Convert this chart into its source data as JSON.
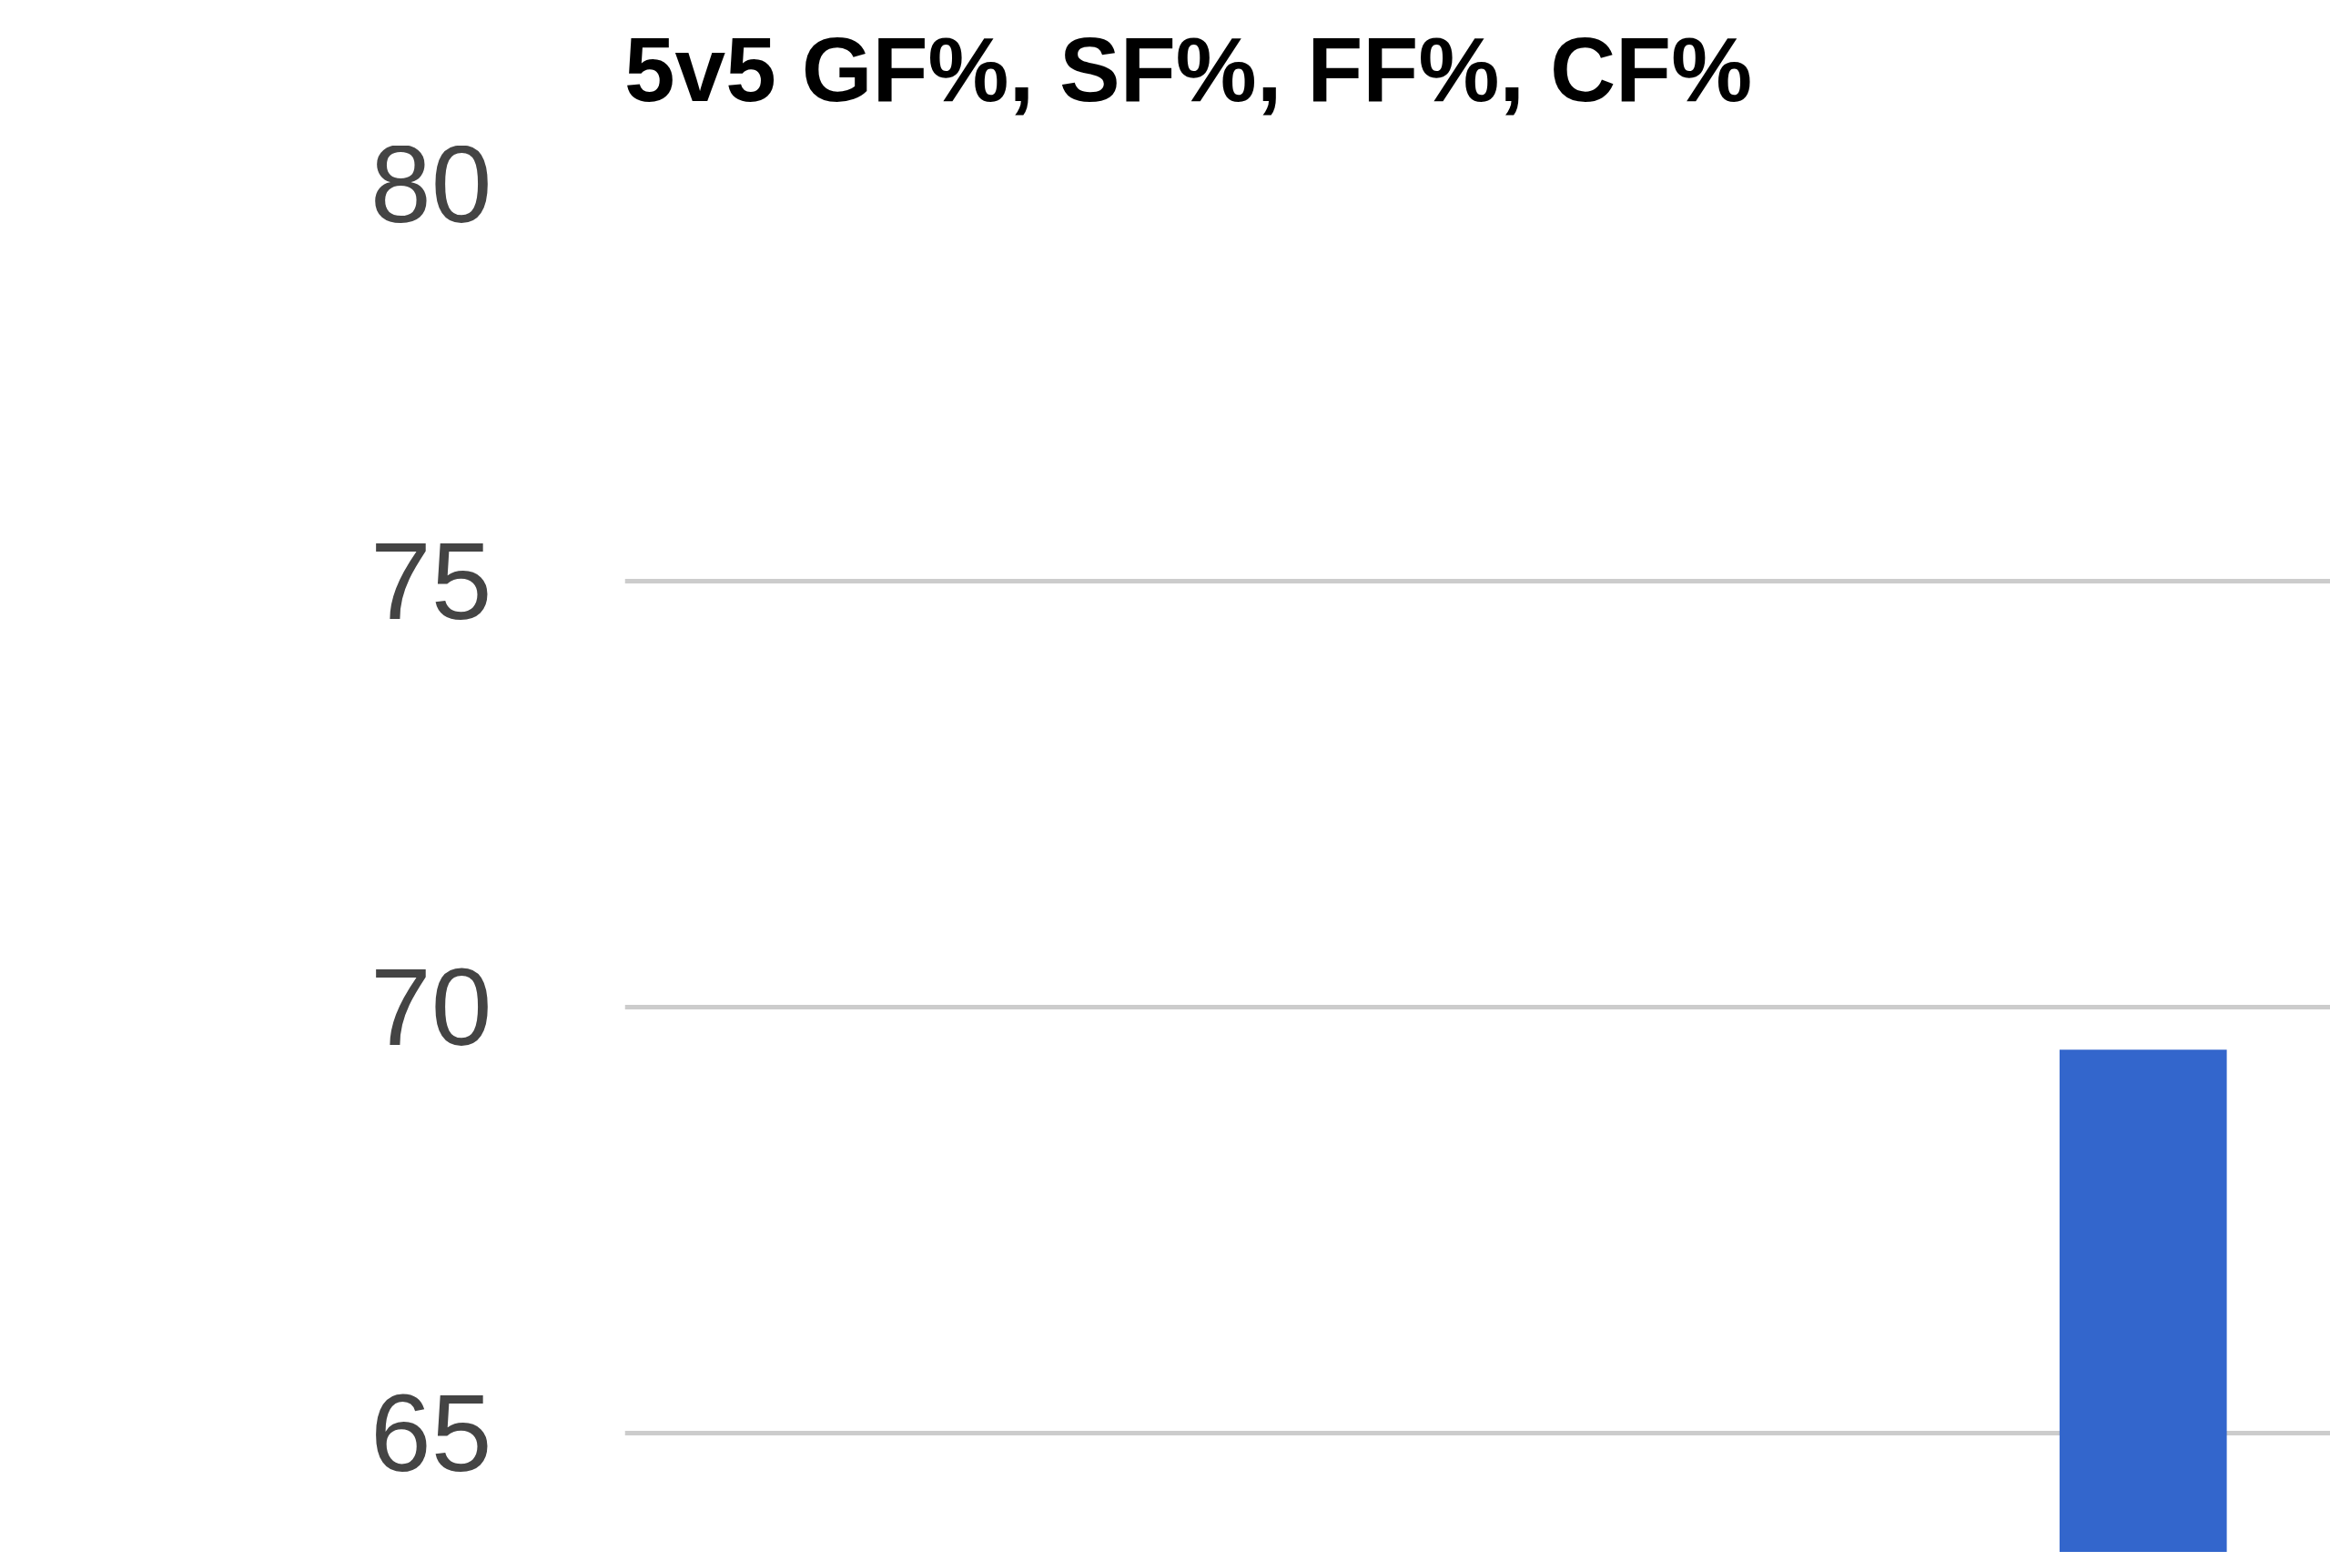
{
  "chart_data": {
    "type": "bar",
    "title": "5v5 GF%, SF%, FF%, CF%",
    "categories": [
      null
    ],
    "series": [
      {
        "color": "#3366cc",
        "values": [
          69.5
        ]
      }
    ],
    "ylim": [
      63.6,
      80
    ],
    "yticks": [
      65,
      70,
      75,
      80
    ],
    "grid": "y"
  }
}
